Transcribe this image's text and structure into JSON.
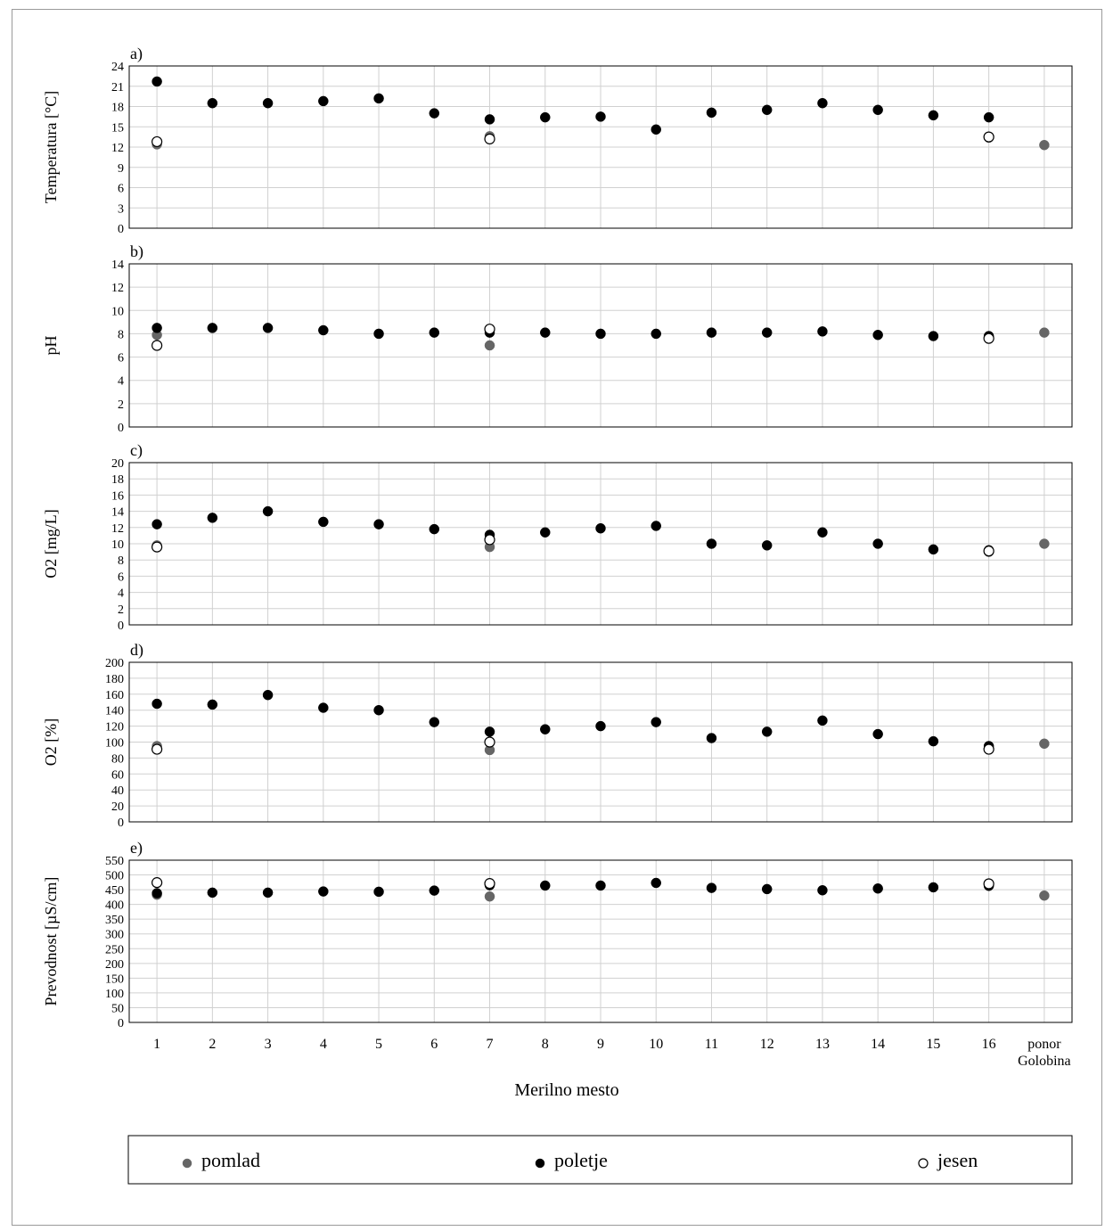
{
  "xlabel": "Merilno mesto",
  "categories": [
    "1",
    "2",
    "3",
    "4",
    "5",
    "6",
    "7",
    "8",
    "9",
    "10",
    "11",
    "12",
    "13",
    "14",
    "15",
    "16",
    "ponor Golobina"
  ],
  "legend": [
    {
      "key": "pomlad",
      "label": "pomlad",
      "color": "#666666",
      "hollow": false
    },
    {
      "key": "poletje",
      "label": "poletje",
      "color": "#000000",
      "hollow": false
    },
    {
      "key": "jesen",
      "label": "jesen",
      "color": "#ffffff",
      "hollow": true
    }
  ],
  "chart_data": [
    {
      "type": "scatter",
      "panel": "a)",
      "ylabel": "Temperatura [°C]",
      "ylim": [
        0,
        24
      ],
      "yticks": [
        0,
        3,
        6,
        9,
        12,
        15,
        18,
        21,
        24
      ],
      "grid": true,
      "series": [
        {
          "name": "pomlad",
          "points": [
            [
              1,
              12.4
            ],
            [
              7,
              13.6
            ],
            [
              16,
              13.4
            ],
            [
              17,
              12.3
            ]
          ]
        },
        {
          "name": "poletje",
          "points": [
            [
              1,
              21.7
            ],
            [
              2,
              18.5
            ],
            [
              3,
              18.5
            ],
            [
              4,
              18.8
            ],
            [
              5,
              19.2
            ],
            [
              6,
              17.0
            ],
            [
              7,
              16.1
            ],
            [
              8,
              16.4
            ],
            [
              9,
              16.5
            ],
            [
              10,
              14.6
            ],
            [
              11,
              17.1
            ],
            [
              12,
              17.5
            ],
            [
              13,
              18.5
            ],
            [
              14,
              17.5
            ],
            [
              15,
              16.7
            ],
            [
              16,
              16.4
            ]
          ]
        },
        {
          "name": "jesen",
          "points": [
            [
              1,
              12.8
            ],
            [
              7,
              13.2
            ],
            [
              16,
              13.5
            ]
          ]
        }
      ]
    },
    {
      "type": "scatter",
      "panel": "b)",
      "ylabel": "pH",
      "ylim": [
        0,
        14
      ],
      "yticks": [
        0,
        2,
        4,
        6,
        8,
        10,
        12,
        14
      ],
      "grid": true,
      "series": [
        {
          "name": "pomlad",
          "points": [
            [
              1,
              7.9
            ],
            [
              7,
              7.0
            ],
            [
              16,
              7.7
            ],
            [
              17,
              8.1
            ]
          ]
        },
        {
          "name": "poletje",
          "points": [
            [
              1,
              8.5
            ],
            [
              2,
              8.5
            ],
            [
              3,
              8.5
            ],
            [
              4,
              8.3
            ],
            [
              5,
              8.0
            ],
            [
              6,
              8.1
            ],
            [
              7,
              8.1
            ],
            [
              8,
              8.1
            ],
            [
              9,
              8.0
            ],
            [
              10,
              8.0
            ],
            [
              11,
              8.1
            ],
            [
              12,
              8.1
            ],
            [
              13,
              8.2
            ],
            [
              14,
              7.9
            ],
            [
              15,
              7.8
            ],
            [
              16,
              7.8
            ]
          ]
        },
        {
          "name": "jesen",
          "points": [
            [
              1,
              7.0
            ],
            [
              7,
              8.4
            ],
            [
              16,
              7.6
            ]
          ]
        }
      ]
    },
    {
      "type": "scatter",
      "panel": "c)",
      "ylabel": "O2 [mg/L]",
      "ylim": [
        0,
        20
      ],
      "yticks": [
        0,
        2,
        4,
        6,
        8,
        10,
        12,
        14,
        16,
        18,
        20
      ],
      "grid": true,
      "series": [
        {
          "name": "pomlad",
          "points": [
            [
              1,
              9.8
            ],
            [
              7,
              9.6
            ],
            [
              16,
              9.0
            ],
            [
              17,
              10.0
            ]
          ]
        },
        {
          "name": "poletje",
          "points": [
            [
              1,
              12.4
            ],
            [
              2,
              13.2
            ],
            [
              3,
              14.0
            ],
            [
              4,
              12.7
            ],
            [
              5,
              12.4
            ],
            [
              6,
              11.8
            ],
            [
              7,
              11.1
            ],
            [
              8,
              11.4
            ],
            [
              9,
              11.9
            ],
            [
              10,
              12.2
            ],
            [
              11,
              10.0
            ],
            [
              12,
              9.8
            ],
            [
              13,
              11.4
            ],
            [
              14,
              10.0
            ],
            [
              15,
              9.3
            ],
            [
              16,
              9.2
            ]
          ]
        },
        {
          "name": "jesen",
          "points": [
            [
              1,
              9.6
            ],
            [
              7,
              10.5
            ],
            [
              16,
              9.1
            ]
          ]
        }
      ]
    },
    {
      "type": "scatter",
      "panel": "d)",
      "ylabel": "O2 [%]",
      "ylim": [
        0,
        200
      ],
      "yticks": [
        0,
        20,
        40,
        60,
        80,
        100,
        120,
        140,
        160,
        180,
        200
      ],
      "grid": true,
      "series": [
        {
          "name": "pomlad",
          "points": [
            [
              1,
              95
            ],
            [
              7,
              90
            ],
            [
              16,
              92
            ],
            [
              17,
              98
            ]
          ]
        },
        {
          "name": "poletje",
          "points": [
            [
              1,
              148
            ],
            [
              2,
              147
            ],
            [
              3,
              159
            ],
            [
              4,
              143
            ],
            [
              5,
              140
            ],
            [
              6,
              125
            ],
            [
              7,
              113
            ],
            [
              8,
              116
            ],
            [
              9,
              120
            ],
            [
              10,
              125
            ],
            [
              11,
              105
            ],
            [
              12,
              113
            ],
            [
              13,
              127
            ],
            [
              14,
              110
            ],
            [
              15,
              101
            ],
            [
              16,
              95
            ]
          ]
        },
        {
          "name": "jesen",
          "points": [
            [
              1,
              91
            ],
            [
              7,
              100
            ],
            [
              16,
              91
            ]
          ]
        }
      ]
    },
    {
      "type": "scatter",
      "panel": "e)",
      "ylabel": "Prevodnost  [µS/cm]",
      "ylim": [
        0,
        550
      ],
      "yticks": [
        0,
        50,
        100,
        150,
        200,
        250,
        300,
        350,
        400,
        450,
        500,
        550
      ],
      "grid": true,
      "series": [
        {
          "name": "pomlad",
          "points": [
            [
              1,
              433
            ],
            [
              7,
              427
            ],
            [
              16,
              465
            ],
            [
              17,
              430
            ]
          ]
        },
        {
          "name": "poletje",
          "points": [
            [
              1,
              438
            ],
            [
              2,
              440
            ],
            [
              3,
              440
            ],
            [
              4,
              444
            ],
            [
              5,
              443
            ],
            [
              6,
              447
            ],
            [
              7,
              465
            ],
            [
              8,
              464
            ],
            [
              9,
              464
            ],
            [
              10,
              473
            ],
            [
              11,
              456
            ],
            [
              12,
              452
            ],
            [
              13,
              448
            ],
            [
              14,
              454
            ],
            [
              15,
              458
            ],
            [
              16,
              463
            ]
          ]
        },
        {
          "name": "jesen",
          "points": [
            [
              1,
              474
            ],
            [
              7,
              471
            ],
            [
              16,
              470
            ]
          ]
        }
      ]
    }
  ]
}
